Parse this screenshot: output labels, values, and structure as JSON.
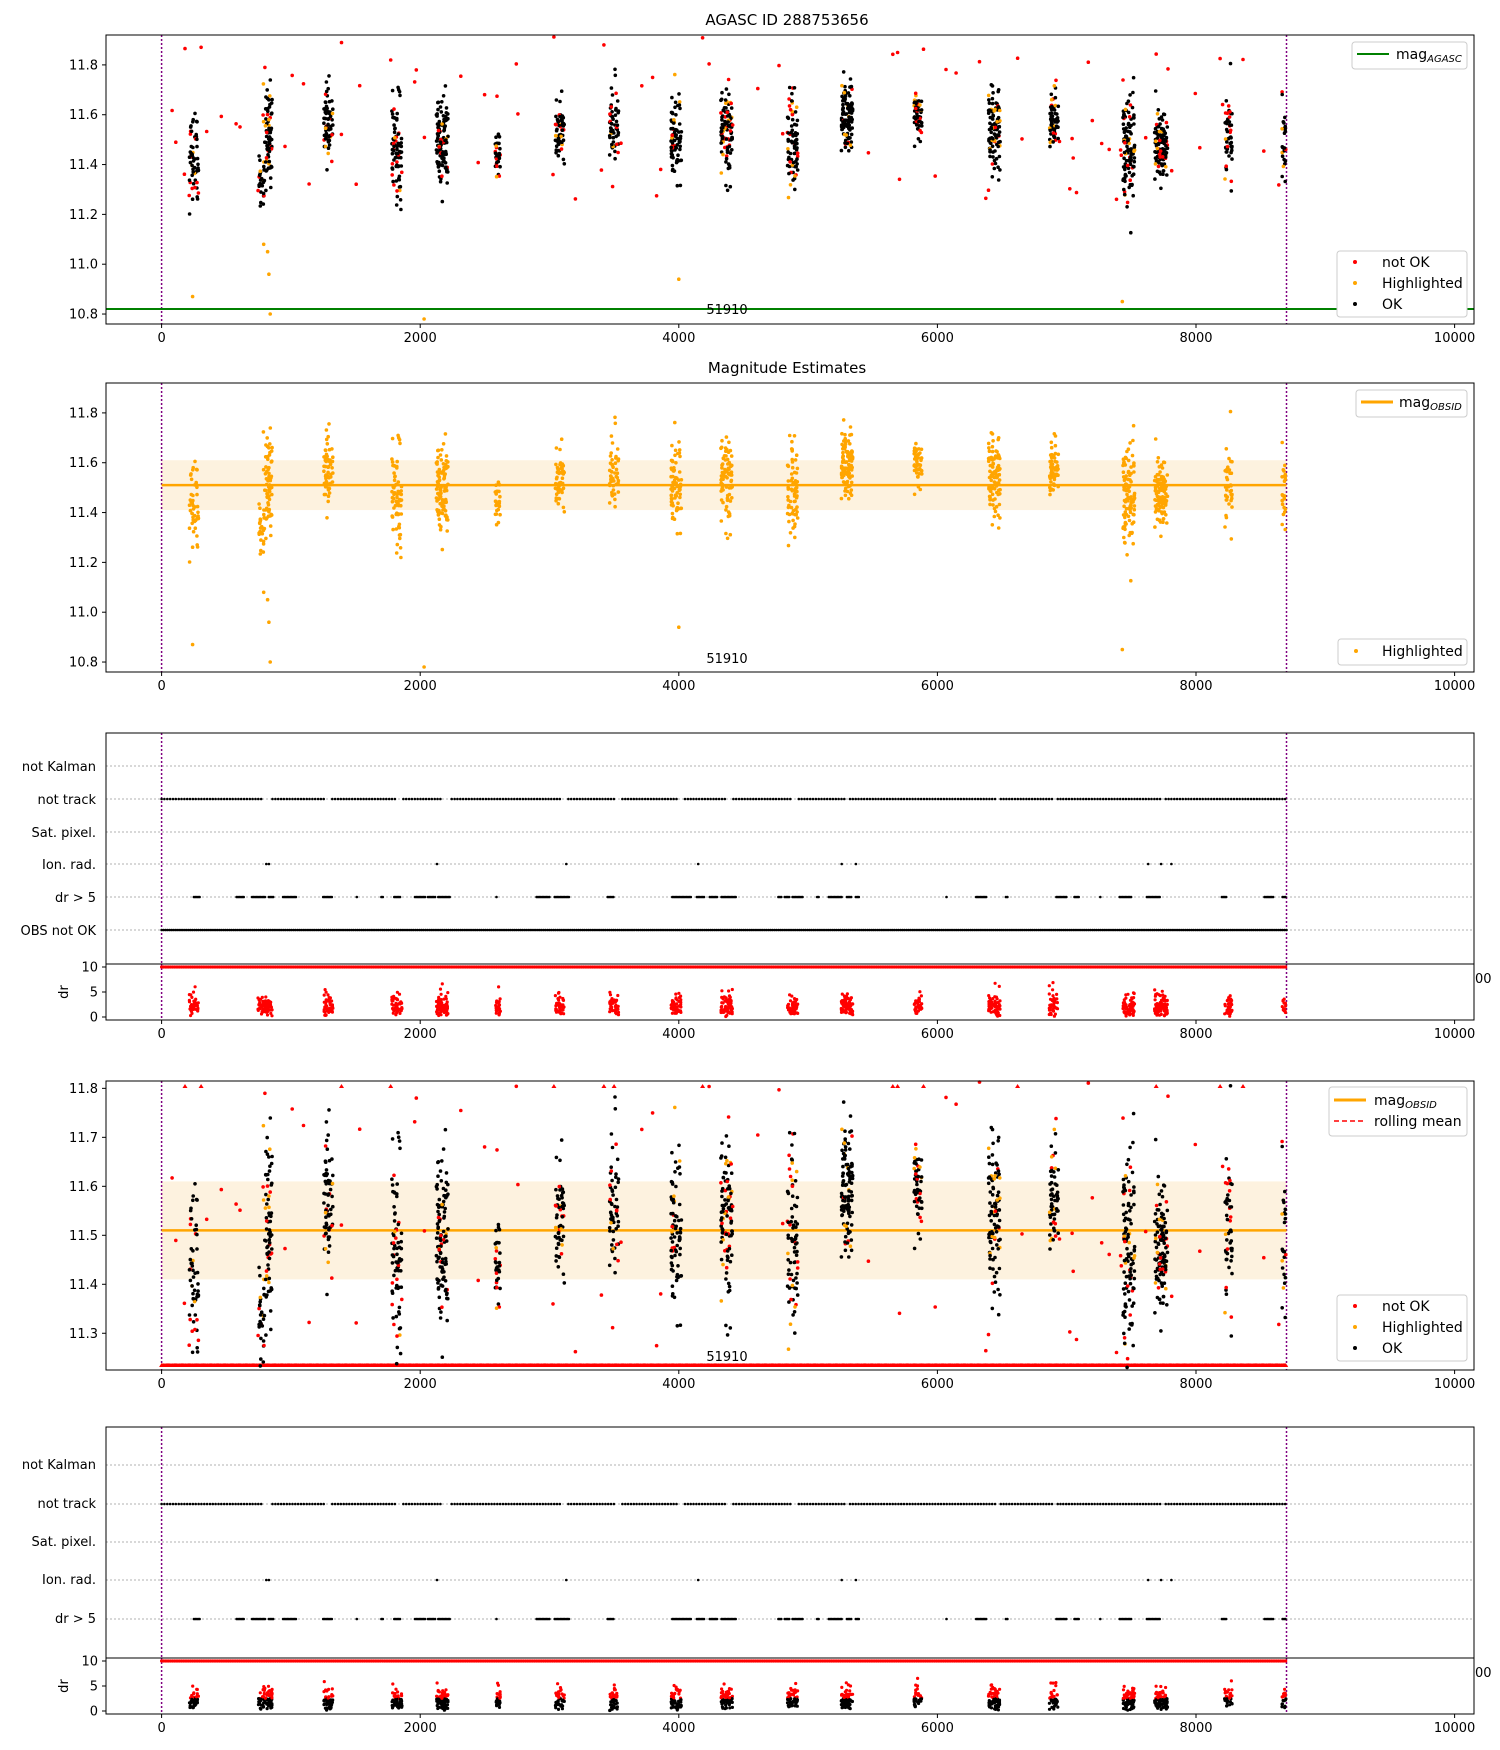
{
  "figure": {
    "colors": {
      "not_ok": "#ff0000",
      "highlighted": "#ffa500",
      "ok": "#000000",
      "agasc_line": "#008000",
      "obsid_line": "#ffa500",
      "obsid_band": "#fdf2df",
      "rolling_mean": "#ff0000",
      "obs_boundary": "#800080"
    },
    "texts": {
      "p1_title": "AGASC ID 288753656",
      "p2_title": "Magnitude Estimates",
      "obsid_label": "51910",
      "legend_mag_agasc_base": "mag",
      "legend_mag_agasc_sub": "AGASC",
      "legend_mag_obsid_base": "mag",
      "legend_mag_obsid_sub": "OBSID",
      "legend_not_ok": "not OK",
      "legend_highlighted": "Highlighted",
      "legend_ok": "OK",
      "legend_rolling_mean": "rolling mean",
      "flag_not_kalman": "not Kalman",
      "flag_not_track": "not track",
      "flag_sat_pixel": "Sat. pixel.",
      "flag_ion_rad": "Ion. rad.",
      "flag_dr5": "dr > 5",
      "flag_obs_not_ok": "OBS not OK",
      "dr_ylabel": "dr",
      "overflow_tick": "00"
    }
  },
  "chart_data": [
    {
      "type": "scatter",
      "title": "AGASC ID 288753656",
      "xlim": [
        -430,
        10150
      ],
      "ylim": [
        10.76,
        11.92
      ],
      "x_ticks": [
        0,
        2000,
        4000,
        6000,
        8000,
        10000
      ],
      "y_ticks": [
        10.8,
        11.0,
        11.2,
        11.4,
        11.6,
        11.8
      ],
      "x_tick_labels": [
        "0",
        "2000",
        "4000",
        "6000",
        "8000",
        "10000"
      ],
      "y_tick_labels": [
        "10.8",
        "11.0",
        "11.2",
        "11.4",
        "11.6",
        "11.8"
      ],
      "mag_agasc": 10.82,
      "obs_start": 0,
      "obs_end": 8700,
      "obsid_label": "51910",
      "legend_placement": [
        "top-right",
        "bottom-right"
      ],
      "series": [
        {
          "name": "not OK",
          "color": "#ff0000"
        },
        {
          "name": "Highlighted",
          "color": "#ffa500"
        },
        {
          "name": "OK",
          "color": "#000000"
        }
      ],
      "clusters": [
        {
          "x": 250,
          "y": 11.45,
          "w": 70,
          "s": 0.09,
          "n": 60
        },
        {
          "x": 770,
          "y": 11.35,
          "w": 50,
          "s": 0.05,
          "n": 30
        },
        {
          "x": 820,
          "y": 11.5,
          "w": 70,
          "s": 0.1,
          "n": 80
        },
        {
          "x": 1290,
          "y": 11.56,
          "w": 70,
          "s": 0.07,
          "n": 70
        },
        {
          "x": 1820,
          "y": 11.48,
          "w": 80,
          "s": 0.09,
          "n": 80
        },
        {
          "x": 2170,
          "y": 11.5,
          "w": 90,
          "s": 0.08,
          "n": 110
        },
        {
          "x": 2600,
          "y": 11.43,
          "w": 40,
          "s": 0.07,
          "n": 35
        },
        {
          "x": 3080,
          "y": 11.53,
          "w": 70,
          "s": 0.06,
          "n": 60
        },
        {
          "x": 3500,
          "y": 11.56,
          "w": 70,
          "s": 0.07,
          "n": 60
        },
        {
          "x": 3980,
          "y": 11.52,
          "w": 80,
          "s": 0.08,
          "n": 80
        },
        {
          "x": 4370,
          "y": 11.53,
          "w": 90,
          "s": 0.08,
          "n": 100
        },
        {
          "x": 4880,
          "y": 11.5,
          "w": 80,
          "s": 0.1,
          "n": 80
        },
        {
          "x": 5300,
          "y": 11.6,
          "w": 90,
          "s": 0.07,
          "n": 110
        },
        {
          "x": 5850,
          "y": 11.6,
          "w": 60,
          "s": 0.05,
          "n": 50
        },
        {
          "x": 6440,
          "y": 11.55,
          "w": 90,
          "s": 0.09,
          "n": 100
        },
        {
          "x": 6900,
          "y": 11.58,
          "w": 70,
          "s": 0.06,
          "n": 60
        },
        {
          "x": 7480,
          "y": 11.46,
          "w": 90,
          "s": 0.12,
          "n": 110
        },
        {
          "x": 7730,
          "y": 11.46,
          "w": 100,
          "s": 0.06,
          "n": 120
        },
        {
          "x": 8250,
          "y": 11.5,
          "w": 60,
          "s": 0.08,
          "n": 50
        },
        {
          "x": 8680,
          "y": 11.5,
          "w": 30,
          "s": 0.08,
          "n": 25
        }
      ]
    },
    {
      "type": "scatter",
      "title": "Magnitude Estimates",
      "xlim": [
        -430,
        10150
      ],
      "ylim": [
        10.76,
        11.92
      ],
      "x_ticks": [
        0,
        2000,
        4000,
        6000,
        8000,
        10000
      ],
      "y_ticks": [
        10.8,
        11.0,
        11.2,
        11.4,
        11.6,
        11.8
      ],
      "mag_obsid": 11.51,
      "band": [
        11.41,
        11.61
      ],
      "legend_placement": [
        "top-right",
        "bottom-right"
      ],
      "series": [
        {
          "name": "Highlighted",
          "color": "#ffa500"
        }
      ]
    },
    {
      "type": "scatter",
      "title": "",
      "flags_y_labels": [
        "not Kalman",
        "not track",
        "Sat. pixel.",
        "Ion. rad.",
        "dr > 5",
        "OBS not OK"
      ],
      "dr_ylim": [
        0,
        10
      ],
      "dr_y_ticks": [
        0,
        5,
        10
      ],
      "xlim": [
        -430,
        10150
      ],
      "ion_rad_x": [
        810,
        830,
        2130,
        3130,
        4150,
        5260,
        5370,
        7630,
        7730,
        7810
      ],
      "dr5_clusters": [
        [
          250,
          300
        ],
        [
          580,
          640
        ],
        [
          700,
          800
        ],
        [
          830,
          870
        ],
        [
          940,
          1040
        ],
        [
          1250,
          1320
        ],
        [
          1510,
          1520
        ],
        [
          1700,
          1720
        ],
        [
          1800,
          1850
        ],
        [
          1960,
          2040
        ],
        [
          2060,
          2120
        ],
        [
          2140,
          2230
        ],
        [
          2590,
          2600
        ],
        [
          2900,
          3000
        ],
        [
          3040,
          3150
        ],
        [
          3450,
          3500
        ],
        [
          3950,
          4100
        ],
        [
          4140,
          4200
        ],
        [
          4240,
          4300
        ],
        [
          4330,
          4440
        ],
        [
          4770,
          4800
        ],
        [
          4820,
          4860
        ],
        [
          4880,
          4960
        ],
        [
          5070,
          5090
        ],
        [
          5160,
          5260
        ],
        [
          5300,
          5340
        ],
        [
          5370,
          5400
        ],
        [
          6070,
          6080
        ],
        [
          6300,
          6380
        ],
        [
          6530,
          6550
        ],
        [
          6920,
          7000
        ],
        [
          7060,
          7100
        ],
        [
          7260,
          7270
        ],
        [
          7410,
          7500
        ],
        [
          7620,
          7720
        ],
        [
          8200,
          8240
        ],
        [
          8530,
          8600
        ],
        [
          8670,
          8700
        ]
      ],
      "not_track_gaps": [
        [
          770,
          840
        ],
        [
          1270,
          1310
        ],
        [
          1810,
          1860
        ],
        [
          2170,
          2230
        ],
        [
          3100,
          3140
        ],
        [
          3510,
          3550
        ],
        [
          3990,
          4040
        ],
        [
          4370,
          4410
        ],
        [
          4880,
          4920
        ],
        [
          5290,
          5320
        ],
        [
          6450,
          6490
        ],
        [
          6890,
          6920
        ],
        [
          7460,
          7480
        ],
        [
          7740,
          7760
        ],
        [
          8250,
          8270
        ]
      ]
    },
    {
      "type": "scatter",
      "title": "",
      "xlim": [
        -430,
        10150
      ],
      "ylim": [
        11.225,
        11.815
      ],
      "y_ticks": [
        11.3,
        11.4,
        11.5,
        11.6,
        11.7,
        11.8
      ],
      "mag_obsid": 11.51,
      "band": [
        11.41,
        11.61
      ],
      "legend_placement": [
        "top-right",
        "bottom-right"
      ],
      "series": [
        {
          "name": "mag OBSID",
          "color": "#ffa500"
        },
        {
          "name": "rolling mean",
          "color": "#ff0000"
        },
        {
          "name": "not OK",
          "color": "#ff0000"
        },
        {
          "name": "Highlighted",
          "color": "#ffa500"
        },
        {
          "name": "OK",
          "color": "#000000"
        }
      ]
    },
    {
      "type": "scatter",
      "title": "",
      "flags_y_labels": [
        "not Kalman",
        "not track",
        "Sat. pixel.",
        "Ion. rad.",
        "dr > 5"
      ],
      "dr_ylim": [
        0,
        10
      ],
      "dr_y_ticks": [
        0,
        5,
        10
      ],
      "xlim": [
        -430,
        10150
      ]
    }
  ]
}
